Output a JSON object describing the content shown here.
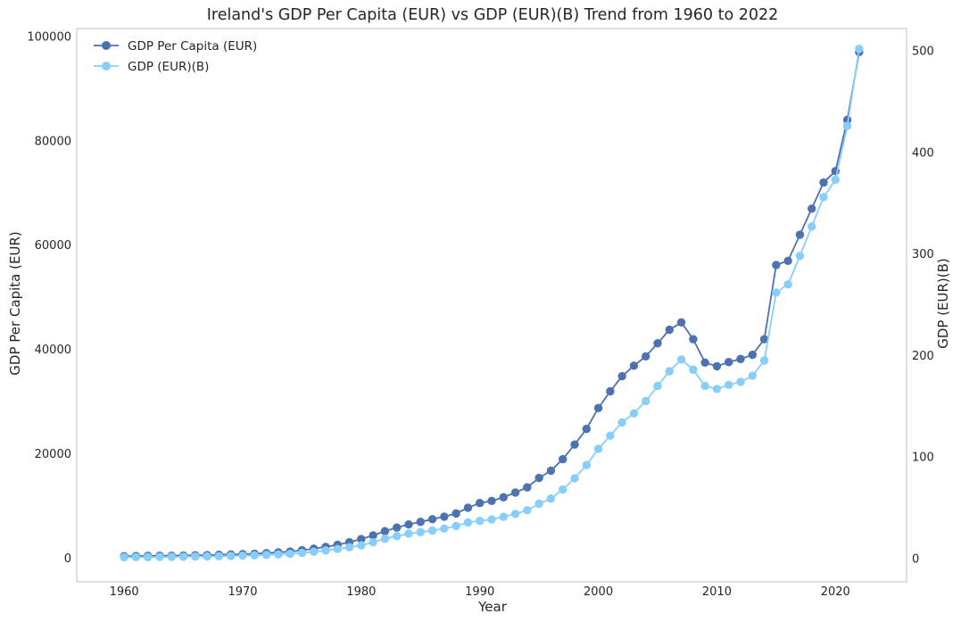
{
  "chart_data": {
    "type": "line",
    "title": "Ireland's GDP Per Capita (EUR) vs GDP (EUR)(B) Trend from 1960 to 2022",
    "xlabel": "Year",
    "ylabel": "GDP Per Capita (EUR)",
    "ylabel_right": "GDP (EUR)(B)",
    "xlim": [
      1956,
      2026
    ],
    "ylim": [
      -4500,
      101500
    ],
    "ylim_right": [
      -23,
      522
    ],
    "x_ticks": [
      "1960",
      "1970",
      "1980",
      "1990",
      "2000",
      "2010",
      "2020"
    ],
    "y_ticks": [
      "0",
      "20000",
      "40000",
      "60000",
      "80000",
      "100000"
    ],
    "y_ticks_right": [
      "0",
      "100",
      "200",
      "300",
      "400",
      "500"
    ],
    "grid": false,
    "legend_position": "top-left",
    "x": [
      1960,
      1961,
      1962,
      1963,
      1964,
      1965,
      1966,
      1967,
      1968,
      1969,
      1970,
      1971,
      1972,
      1973,
      1974,
      1975,
      1976,
      1977,
      1978,
      1979,
      1980,
      1981,
      1982,
      1983,
      1984,
      1985,
      1986,
      1987,
      1988,
      1989,
      1990,
      1991,
      1992,
      1993,
      1994,
      1995,
      1996,
      1997,
      1998,
      1999,
      2000,
      2001,
      2002,
      2003,
      2004,
      2005,
      2006,
      2007,
      2008,
      2009,
      2010,
      2011,
      2012,
      2013,
      2014,
      2015,
      2016,
      2017,
      2018,
      2019,
      2020,
      2021,
      2022
    ],
    "series": [
      {
        "name": "GDP Per Capita (EUR)",
        "axis": "left",
        "color": "#4c72b0",
        "values": [
          400,
          450,
          480,
          500,
          520,
          540,
          580,
          620,
          680,
          740,
          800,
          880,
          1000,
          1150,
          1300,
          1550,
          1850,
          2200,
          2600,
          3100,
          3700,
          4400,
          5200,
          5900,
          6500,
          7000,
          7500,
          8000,
          8600,
          9700,
          10600,
          11000,
          11700,
          12600,
          13600,
          15400,
          16800,
          19000,
          21800,
          24800,
          28800,
          32000,
          34900,
          36900,
          38700,
          41200,
          43800,
          45200,
          42000,
          37500,
          36800,
          37600,
          38200,
          39000,
          42000,
          56200,
          57000,
          62000,
          67000,
          72000,
          74200,
          84000,
          97000
        ]
      },
      {
        "name": "GDP (EUR)(B)",
        "axis": "right",
        "color": "#87cefa",
        "values": [
          1.2,
          1.3,
          1.4,
          1.5,
          1.6,
          1.7,
          1.9,
          2.0,
          2.2,
          2.5,
          2.8,
          3.1,
          3.5,
          4.0,
          4.6,
          5.5,
          6.6,
          7.9,
          9.4,
          11.0,
          13.0,
          16.0,
          19.5,
          22.0,
          24.5,
          26.0,
          27.5,
          29.5,
          32.0,
          35.5,
          37.0,
          38.5,
          41.0,
          44.0,
          47.5,
          54.0,
          59.0,
          68.0,
          79.0,
          92.0,
          108.0,
          121.0,
          134.0,
          143.0,
          155.0,
          170.0,
          184.5,
          196.0,
          186.0,
          170.0,
          167.0,
          171.0,
          174.0,
          180.0,
          195.0,
          262.0,
          270.0,
          298.0,
          327.0,
          356.0,
          373.0,
          426.0,
          502.0
        ]
      }
    ]
  }
}
